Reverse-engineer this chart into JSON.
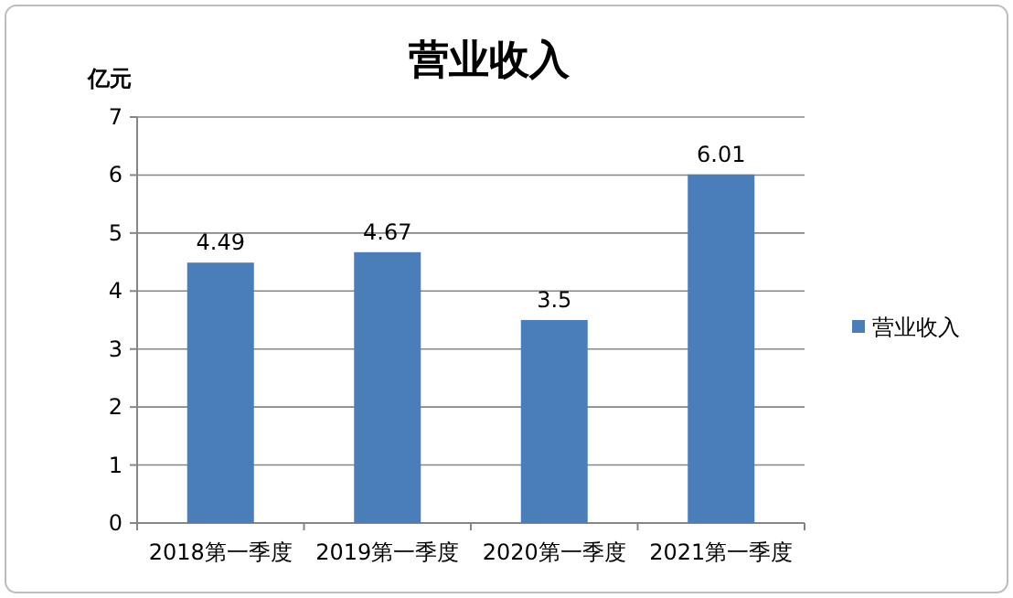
{
  "chart_data": {
    "type": "bar",
    "title": "营业收入",
    "ylabel": "亿元",
    "categories": [
      "2018第一季度",
      "2019第一季度",
      "2020第一季度",
      "2021第一季度"
    ],
    "series": [
      {
        "name": "营业收入",
        "color": "#4a7ebb",
        "values": [
          4.49,
          4.67,
          3.5,
          6.01
        ]
      }
    ],
    "ylim": [
      0,
      7
    ],
    "yticks": [
      0,
      1,
      2,
      3,
      4,
      5,
      6,
      7
    ],
    "grid": "y",
    "legend": "right",
    "data_labels": true
  }
}
